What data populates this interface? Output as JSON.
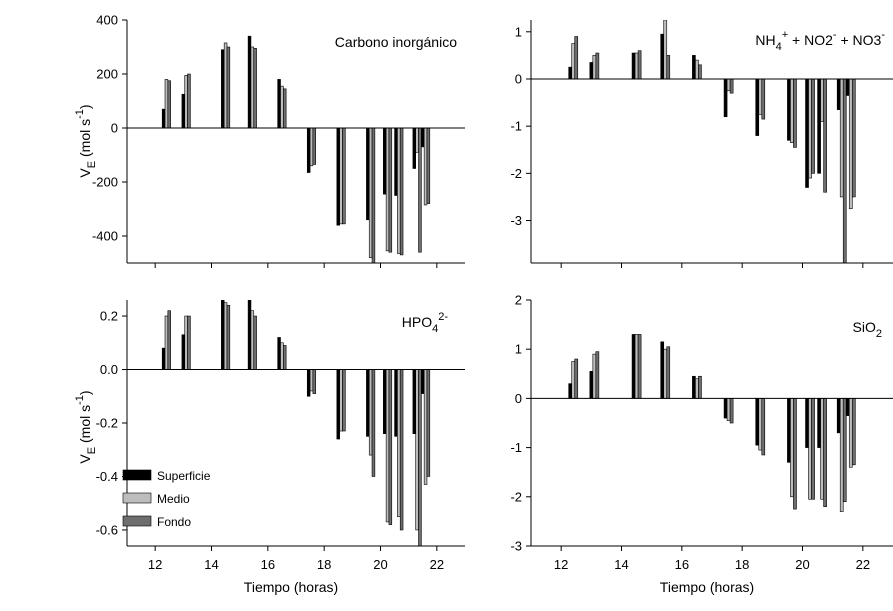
{
  "chart_data": [
    {
      "type": "bar",
      "label": "Carbono inorgánico",
      "xlabel": "",
      "ylabel": "V_E (mol s-1)",
      "xlim": [
        11,
        23
      ],
      "ylim": [
        -500,
        400
      ],
      "xticks": [
        12,
        14,
        16,
        18,
        20,
        22
      ],
      "yticks": [
        -400,
        -200,
        0,
        200,
        400
      ],
      "x": [
        12.25,
        12.95,
        14.35,
        15.3,
        16.35,
        17.4,
        18.45,
        19.5,
        20.1,
        20.5,
        21.15
      ],
      "series": [
        {
          "name": "Superficie",
          "values": [
            70,
            125,
            290,
            340,
            180,
            -165,
            -360,
            -340,
            -245,
            -250,
            -150
          ]
        },
        {
          "name": "Medio",
          "values": [
            180,
            195,
            315,
            300,
            155,
            -140,
            -355,
            -480,
            -455,
            -465,
            -90
          ]
        },
        {
          "name": "Fondo",
          "values": [
            175,
            200,
            300,
            295,
            145,
            -135,
            -355,
            -500,
            -460,
            -470,
            -460
          ]
        }
      ],
      "extra_bars": [
        {
          "x": 21.45,
          "series": "Superficie",
          "value": -70
        },
        {
          "x": 21.55,
          "series": "Medio",
          "value": -285
        },
        {
          "x": 21.65,
          "series": "Fondo",
          "value": -280
        }
      ]
    },
    {
      "type": "bar",
      "label_parts": [
        "NH",
        "4",
        "+",
        " + NO2",
        "-",
        " + NO3",
        "-"
      ],
      "xlabel": "",
      "ylabel": "",
      "xlim": [
        11,
        23
      ],
      "ylim": [
        -3.9,
        1.25
      ],
      "xticks": [
        12,
        14,
        16,
        18,
        20,
        22
      ],
      "yticks": [
        -3,
        -2,
        -1,
        0,
        1
      ],
      "x": [
        12.25,
        12.95,
        14.35,
        15.3,
        16.35,
        17.4,
        18.45,
        19.5,
        20.1,
        20.5,
        21.15
      ],
      "series": [
        {
          "name": "Superficie",
          "values": [
            0.25,
            0.35,
            0.55,
            0.95,
            0.5,
            -0.8,
            -1.2,
            -1.3,
            -2.3,
            -2.0,
            -0.65
          ]
        },
        {
          "name": "Medio",
          "values": [
            0.75,
            0.5,
            0.55,
            1.25,
            0.4,
            -0.25,
            -0.75,
            -1.35,
            -2.1,
            -0.9,
            -2.5
          ]
        },
        {
          "name": "Fondo",
          "values": [
            0.9,
            0.55,
            0.6,
            0.5,
            0.3,
            -0.3,
            -0.85,
            -1.45,
            -2.0,
            -2.4,
            -3.9
          ]
        }
      ],
      "extra_bars": [
        {
          "x": 21.45,
          "series": "Superficie",
          "value": -0.35
        },
        {
          "x": 21.55,
          "series": "Medio",
          "value": -2.75
        },
        {
          "x": 21.65,
          "series": "Fondo",
          "value": -2.5
        }
      ]
    },
    {
      "type": "bar",
      "label_parts": [
        "HPO",
        "4",
        "2-"
      ],
      "xlabel": "Tiempo (horas)",
      "ylabel": "V_E (mol s-1)",
      "xlim": [
        11,
        23
      ],
      "ylim": [
        -0.66,
        0.26
      ],
      "xticks": [
        12,
        14,
        16,
        18,
        20,
        22
      ],
      "yticks": [
        -0.6,
        -0.4,
        -0.2,
        0.0,
        0.2
      ],
      "x": [
        12.25,
        12.95,
        14.35,
        15.3,
        16.35,
        17.4,
        18.45,
        19.5,
        20.1,
        20.5,
        21.15
      ],
      "series": [
        {
          "name": "Superficie",
          "values": [
            0.08,
            0.13,
            0.26,
            0.26,
            0.12,
            -0.1,
            -0.26,
            -0.25,
            -0.24,
            -0.25,
            -0.24
          ]
        },
        {
          "name": "Medio",
          "values": [
            0.2,
            0.2,
            0.25,
            0.22,
            0.1,
            -0.08,
            -0.23,
            -0.32,
            -0.57,
            -0.55,
            -0.6
          ]
        },
        {
          "name": "Fondo",
          "values": [
            0.22,
            0.2,
            0.24,
            0.2,
            0.09,
            -0.09,
            -0.23,
            -0.4,
            -0.58,
            -0.6,
            -0.66
          ]
        }
      ],
      "extra_bars": [
        {
          "x": 21.45,
          "series": "Superficie",
          "value": -0.09
        },
        {
          "x": 21.55,
          "series": "Medio",
          "value": -0.43
        },
        {
          "x": 21.65,
          "series": "Fondo",
          "value": -0.4
        }
      ],
      "legend": {
        "placement": "lower-left",
        "entries": [
          "Superficie",
          "Medio",
          "Fondo"
        ]
      }
    },
    {
      "type": "bar",
      "label_parts": [
        "SiO",
        "2"
      ],
      "xlabel": "Tiempo (horas)",
      "ylabel": "",
      "xlim": [
        11,
        23
      ],
      "ylim": [
        -3,
        2
      ],
      "xticks": [
        12,
        14,
        16,
        18,
        20,
        22
      ],
      "yticks": [
        -3,
        -2,
        -1,
        0,
        1,
        2
      ],
      "x": [
        12.25,
        12.95,
        14.35,
        15.3,
        16.35,
        17.4,
        18.45,
        19.5,
        20.1,
        20.5,
        21.15
      ],
      "series": [
        {
          "name": "Superficie",
          "values": [
            0.3,
            0.55,
            1.3,
            1.15,
            0.45,
            -0.4,
            -0.95,
            -1.3,
            -1.0,
            -1.0,
            -0.7
          ]
        },
        {
          "name": "Medio",
          "values": [
            0.75,
            0.9,
            1.3,
            1.0,
            0.4,
            -0.45,
            -1.05,
            -2.0,
            -2.05,
            -2.05,
            -2.3
          ]
        },
        {
          "name": "Fondo",
          "values": [
            0.8,
            0.95,
            1.3,
            1.05,
            0.45,
            -0.5,
            -1.15,
            -2.25,
            -2.05,
            -2.2,
            -2.1
          ]
        }
      ],
      "extra_bars": [
        {
          "x": 21.45,
          "series": "Superficie",
          "value": -0.35
        },
        {
          "x": 21.55,
          "series": "Medio",
          "value": -1.4
        },
        {
          "x": 21.65,
          "series": "Fondo",
          "value": -1.35
        }
      ]
    }
  ],
  "colors": {
    "Superficie": "#000000",
    "Medio": "#bdbdbd",
    "Fondo": "#6e6e6e"
  }
}
